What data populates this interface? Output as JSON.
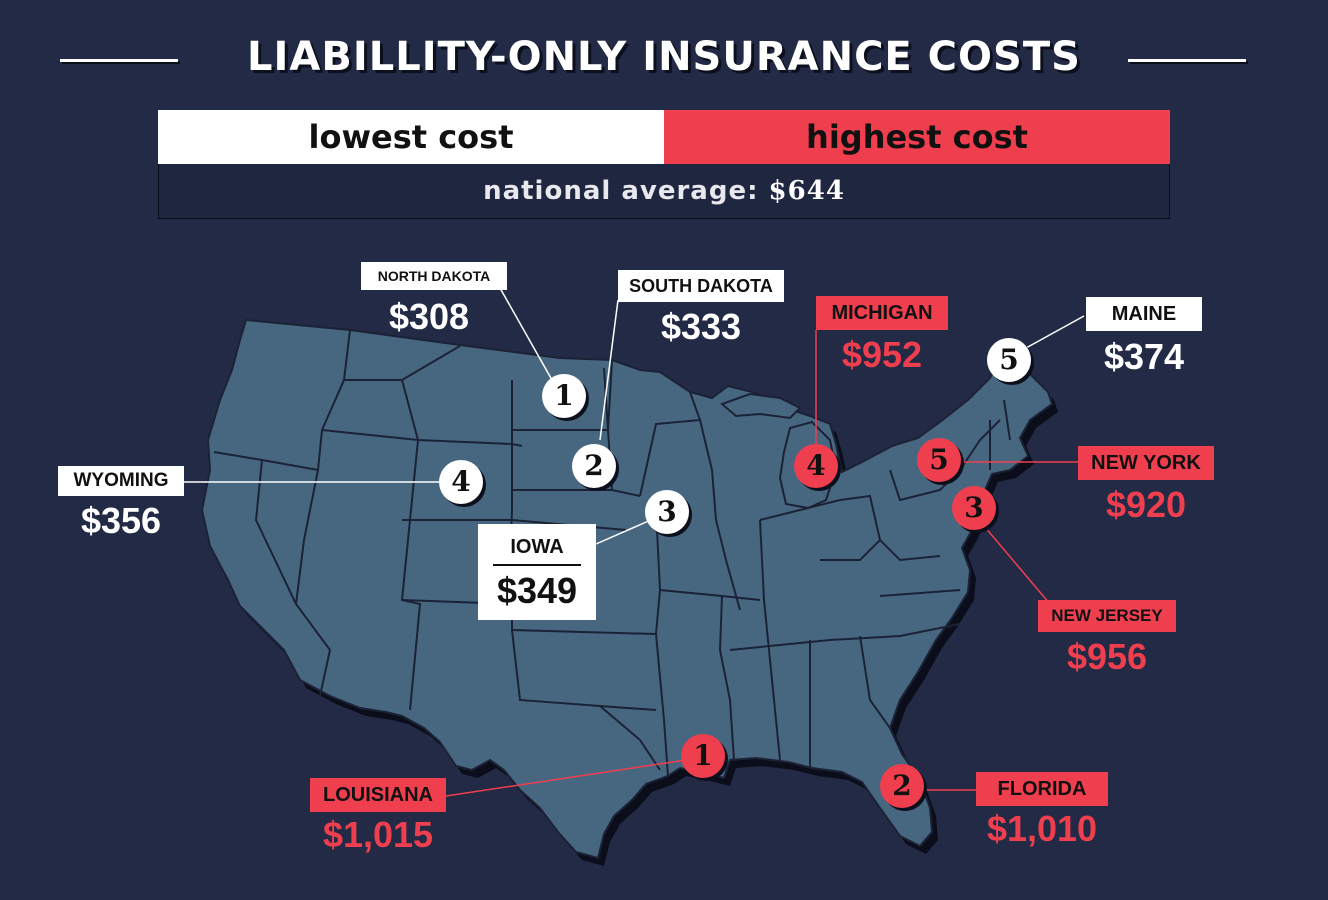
{
  "title": "LIABILLITY-ONLY INSURANCE COSTS",
  "legend": {
    "lowest_label": "lowest cost",
    "highest_label": "highest cost",
    "lowest_color": "#ffffff",
    "highest_color": "#ef3f4f"
  },
  "national_average": {
    "label": "national average:",
    "value": "$644"
  },
  "lowest_states": [
    {
      "rank": "1",
      "state": "NORTH DAKOTA",
      "price": "$308"
    },
    {
      "rank": "2",
      "state": "SOUTH DAKOTA",
      "price": "$333"
    },
    {
      "rank": "3",
      "state": "IOWA",
      "price": "$349"
    },
    {
      "rank": "4",
      "state": "WYOMING",
      "price": "$356"
    },
    {
      "rank": "5",
      "state": "MAINE",
      "price": "$374"
    }
  ],
  "highest_states": [
    {
      "rank": "1",
      "state": "LOUISIANA",
      "price": "$1,015"
    },
    {
      "rank": "2",
      "state": "FLORIDA",
      "price": "$1,010"
    },
    {
      "rank": "3",
      "state": "NEW JERSEY",
      "price": "$956"
    },
    {
      "rank": "4",
      "state": "MICHIGAN",
      "price": "$952"
    },
    {
      "rank": "5",
      "state": "NEW YORK",
      "price": "$920"
    }
  ],
  "map": {
    "fill_color": "#476781",
    "border_color": "#1c2236"
  }
}
